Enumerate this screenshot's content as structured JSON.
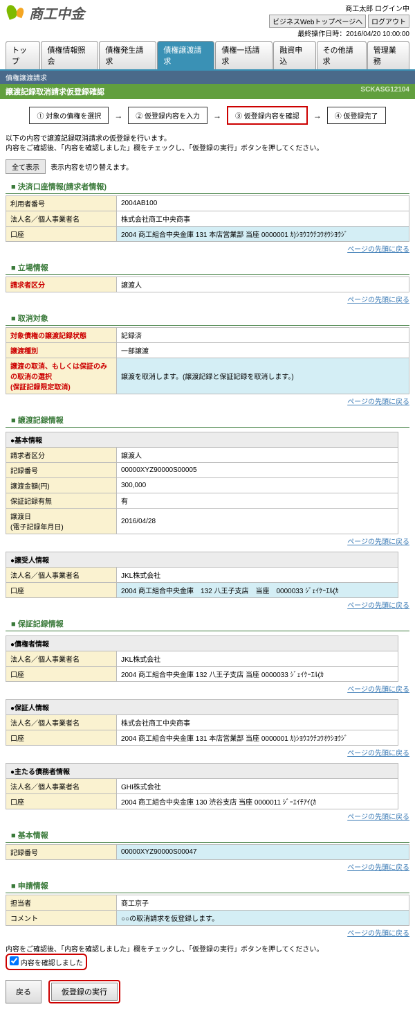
{
  "header": {
    "logo_text": "商工中金",
    "login_info": "商工太郎 ログイン中",
    "btn_top": "ビジネスWebトップページへ",
    "btn_logout": "ログアウト",
    "last_op": "最終操作日時：2016/04/20 10:00:00"
  },
  "tabs": [
    "トップ",
    "債権情報照会",
    "債権発生請求",
    "債権譲渡請求",
    "債権一括請求",
    "融資申込",
    "その他請求",
    "管理業務"
  ],
  "active_tab": 3,
  "breadcrumb": "債権譲渡請求",
  "page_title": "譲渡記録取消請求仮登録確認",
  "screen_id": "SCKASG12104",
  "steps": [
    "① 対象の債権を選択",
    "② 仮登録内容を入力",
    "③ 仮登録内容を確認",
    "④ 仮登録完了"
  ],
  "active_step": 2,
  "instruction1": "以下の内容で譲渡記録取消請求の仮登録を行います。",
  "instruction2": "内容をご確認後、「内容を確認しました」欄をチェックし、「仮登録の実行」ボタンを押してください。",
  "show_all_btn": "全て表示",
  "show_all_note": "表示内容を切り替えます。",
  "sections": {
    "kessai": {
      "title": "■ 決済口座情報(請求者情報)",
      "rows": [
        {
          "label": "利用者番号",
          "val": "2004AB100"
        },
        {
          "label": "法人名／個人事業者名",
          "val": "株式会社商工中央商事"
        },
        {
          "label": "口座",
          "val": "2004 商工組合中央金庫 131 本店営業部 当座 0000001 ｶ)ｼﾖｳｺｳﾁﾕｳｵｳｼﾖｳｼﾞ",
          "hl": true
        }
      ]
    },
    "tachiba": {
      "title": "■ 立場情報",
      "rows": [
        {
          "label": "請求者区分",
          "val": "譲渡人",
          "req": true
        }
      ]
    },
    "torikeshi": {
      "title": "■ 取消対象",
      "rows": [
        {
          "label": "対象債権の譲渡記録状態",
          "val": "記録済",
          "req": true
        },
        {
          "label": "譲渡種別",
          "val": "一部譲渡",
          "req": true
        },
        {
          "label": "譲渡の取消、もしくは保証のみの取消の選択\n(保証記録限定取消)",
          "val": "譲渡を取消します。(譲渡記録と保証記録を取消します。)",
          "req": true,
          "hl": true
        }
      ]
    },
    "joto": {
      "title": "■ 譲渡記録情報",
      "sub1_title": "●基本情報",
      "sub1_rows": [
        {
          "label": "請求者区分",
          "val": "譲渡人"
        },
        {
          "label": "記録番号",
          "val": "00000XYZ90000S00005"
        },
        {
          "label": "譲渡金額(円)",
          "val": "300,000"
        },
        {
          "label": "保証記録有無",
          "val": "有"
        },
        {
          "label": "譲渡日\n(電子記録年月日)",
          "val": "2016/04/28"
        }
      ],
      "sub2_title": "●譲受人情報",
      "sub2_rows": [
        {
          "label": "法人名／個人事業者名",
          "val": "JKL株式会社"
        },
        {
          "label": "口座",
          "val": "2004 商工組合中央金庫　132 八王子支店　当座　0000033 ｼﾞｪｲｹｰｴﾙ(ｶ",
          "hl": true
        }
      ]
    },
    "hosho": {
      "title": "■ 保証記録情報",
      "sub1_title": "●債権者情報",
      "sub1_rows": [
        {
          "label": "法人名／個人事業者名",
          "val": "JKL株式会社"
        },
        {
          "label": "口座",
          "val": "2004 商工組合中央金庫 132 八王子支店 当座 0000033 ｼﾞｪｲｹｰｴﾙ(ｶ"
        }
      ],
      "sub2_title": "●保証人情報",
      "sub2_rows": [
        {
          "label": "法人名／個人事業者名",
          "val": "株式会社商工中央商事"
        },
        {
          "label": "口座",
          "val": "2004 商工組合中央金庫 131 本店営業部 当座 0000001 ｶ)ｼﾖｳｺｳﾁﾕｳｵｳｼﾖｳｼﾞ"
        }
      ],
      "sub3_title": "●主たる債務者情報",
      "sub3_rows": [
        {
          "label": "法人名／個人事業者名",
          "val": "GHI株式会社"
        },
        {
          "label": "口座",
          "val": "2004 商工組合中央金庫 130 渋谷支店 当座 0000011 ｼﾞｰｴｲﾁｱｲ(ｶ"
        }
      ]
    },
    "kihon": {
      "title": "■ 基本情報",
      "rows": [
        {
          "label": "記録番号",
          "val": "00000XYZ90000S00047",
          "hl": true
        }
      ]
    },
    "shinsei": {
      "title": "■ 申請情報",
      "rows": [
        {
          "label": "担当者",
          "val": "商工京子"
        },
        {
          "label": "コメント",
          "val": "○○の取消請求を仮登録します。",
          "hl": true
        }
      ]
    }
  },
  "back_link": "ページの先頭に戻る",
  "confirm_instr": "内容をご確認後、「内容を確認しました」欄をチェックし、「仮登録の実行」ボタンを押してください。",
  "confirm_check": "内容を確認しました",
  "btn_back": "戻る",
  "btn_exec": "仮登録の実行"
}
